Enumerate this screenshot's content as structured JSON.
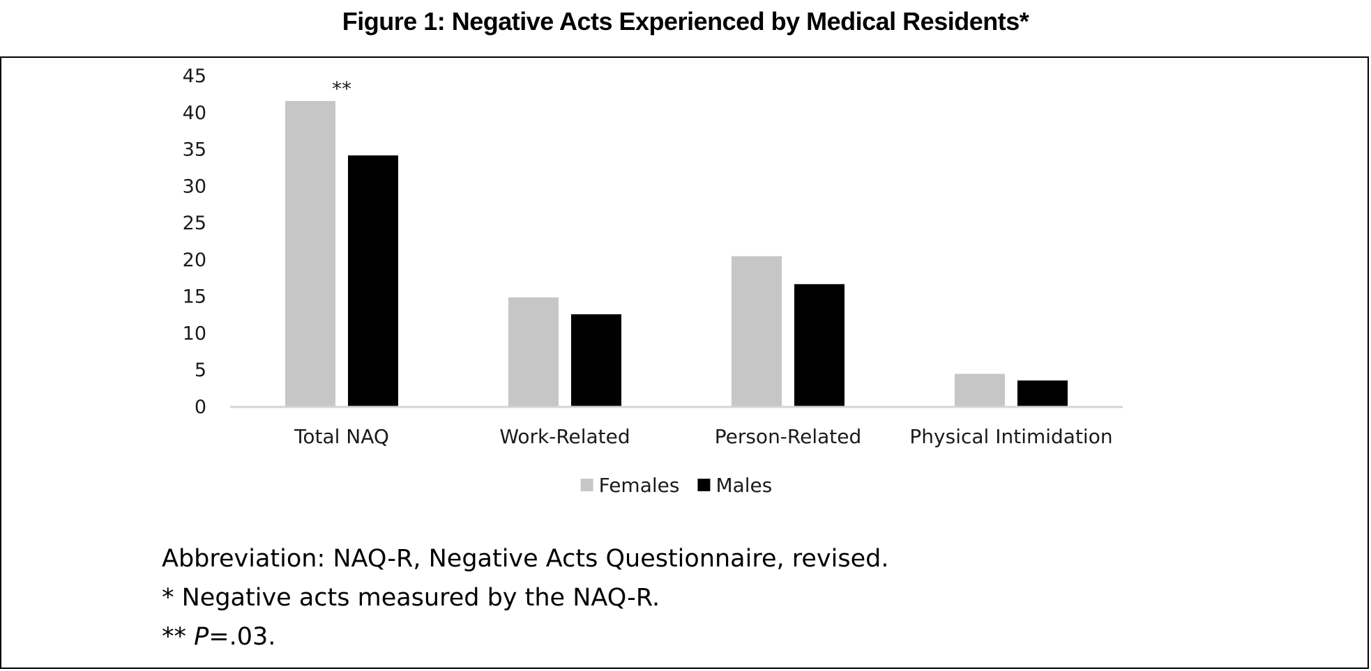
{
  "figure": {
    "title": "Figure 1: Negative Acts Experienced by Medical Residents*"
  },
  "chart_data": {
    "type": "bar",
    "categories": [
      "Total NAQ",
      "Work-Related",
      "Person-Related",
      "Physical Intimidation"
    ],
    "series": [
      {
        "name": "Females",
        "values": [
          41.5,
          14.8,
          20.4,
          4.4
        ],
        "color": "#c6c6c6"
      },
      {
        "name": "Males",
        "values": [
          34.1,
          12.5,
          16.6,
          3.5
        ],
        "color": "#000000"
      }
    ],
    "ylim": [
      0,
      45
    ],
    "yticks": [
      0,
      5,
      10,
      15,
      20,
      25,
      30,
      35,
      40,
      45
    ],
    "grid": false,
    "legend": "bottom",
    "annotations": [
      {
        "text": "**",
        "category": "Total NAQ"
      }
    ]
  },
  "notes": {
    "abbreviation": "Abbreviation: NAQ-R, Negative Acts Questionnaire, revised.",
    "single_star": "* Negative acts measured by the NAQ-R.",
    "double_star_prefix": "** ",
    "p_label": "P",
    "p_value": "=.03."
  }
}
